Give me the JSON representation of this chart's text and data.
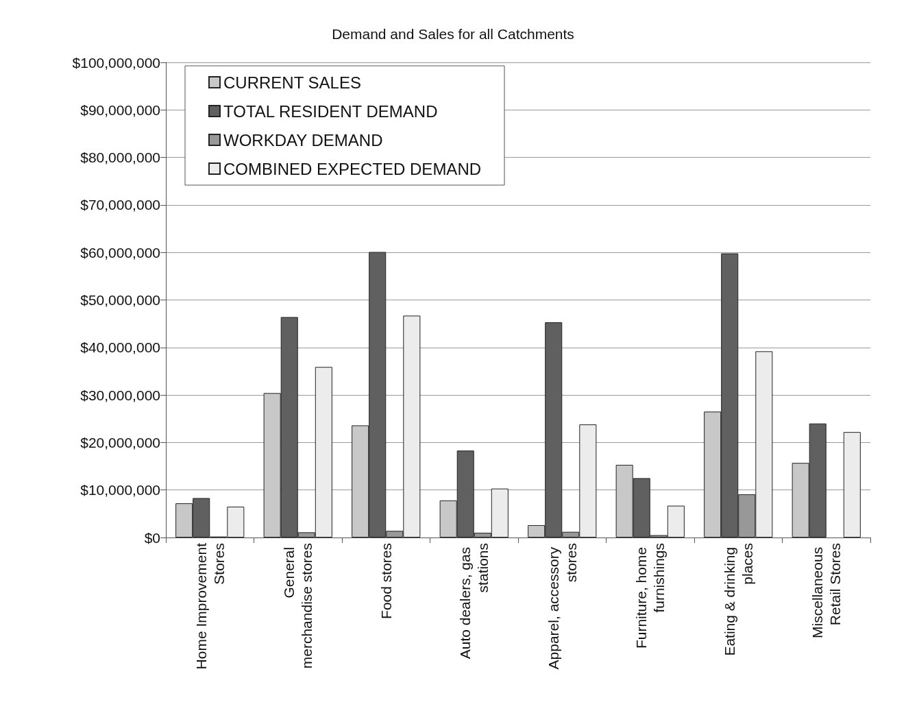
{
  "chart_data": {
    "type": "bar",
    "title": "Demand and Sales for all Catchments",
    "categories": [
      "Home Improvement Stores",
      "General merchandise stores",
      "Food stores",
      "Auto dealers, gas stations",
      "Apparel, accessory stores",
      "Furniture, home furnishings",
      "Eating & drinking places",
      "Miscellaneous Retail Stores"
    ],
    "series": [
      {
        "name": "CURRENT SALES",
        "color": "#c8c8c8",
        "values": [
          7200000,
          30400000,
          23600000,
          7800000,
          2600000,
          15300000,
          26500000,
          15700000
        ]
      },
      {
        "name": "TOTAL RESIDENT DEMAND",
        "color": "#606060",
        "values": [
          8300000,
          46400000,
          60100000,
          18300000,
          45300000,
          12500000,
          59800000,
          24000000
        ]
      },
      {
        "name": "WORKDAY DEMAND",
        "color": "#989898",
        "values": [
          200000,
          1100000,
          1400000,
          1000000,
          1200000,
          500000,
          9100000,
          null
        ]
      },
      {
        "name": "COMBINED EXPECTED DEMAND",
        "color": "#ececec",
        "values": [
          6500000,
          35900000,
          46700000,
          10300000,
          23800000,
          6700000,
          39200000,
          22200000
        ]
      }
    ],
    "ylim": [
      0,
      100000000
    ],
    "yticks": [
      {
        "value": 0,
        "label": "$0"
      },
      {
        "value": 10000000,
        "label": "$10,000,000"
      },
      {
        "value": 20000000,
        "label": "$20,000,000"
      },
      {
        "value": 30000000,
        "label": "$30,000,000"
      },
      {
        "value": 40000000,
        "label": "$40,000,000"
      },
      {
        "value": 50000000,
        "label": "$50,000,000"
      },
      {
        "value": 60000000,
        "label": "$60,000,000"
      },
      {
        "value": 70000000,
        "label": "$70,000,000"
      },
      {
        "value": 80000000,
        "label": "$80,000,000"
      },
      {
        "value": 90000000,
        "label": "$90,000,000"
      },
      {
        "value": 100000000,
        "label": "$100,000,000"
      }
    ],
    "grid": "y",
    "legend": "top left"
  }
}
